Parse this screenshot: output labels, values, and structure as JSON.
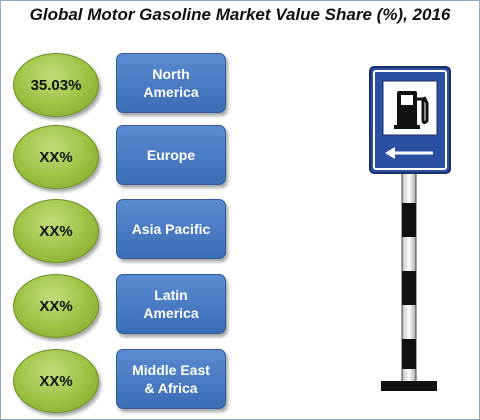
{
  "title": "Global Motor Gasoline Market Value Share (%), 2016",
  "chart_data": {
    "type": "table",
    "title": "Global Motor Gasoline Market Value Share (%), 2016",
    "rows": [
      {
        "value": "35.03%",
        "region": "North\nAmerica"
      },
      {
        "value": "XX%",
        "region": "Europe"
      },
      {
        "value": "XX%",
        "region": "Asia Pacific"
      },
      {
        "value": "XX%",
        "region": "Latin\nAmerica"
      },
      {
        "value": "XX%",
        "region": "Middle East\n& Africa"
      }
    ]
  },
  "colors": {
    "oval_green": "#9cc042",
    "box_blue": "#3b6db6",
    "sign_blue": "#2a4fa3"
  },
  "icons": {
    "sign": "fuel-pump-sign-icon",
    "arrow": "left-arrow-icon"
  }
}
